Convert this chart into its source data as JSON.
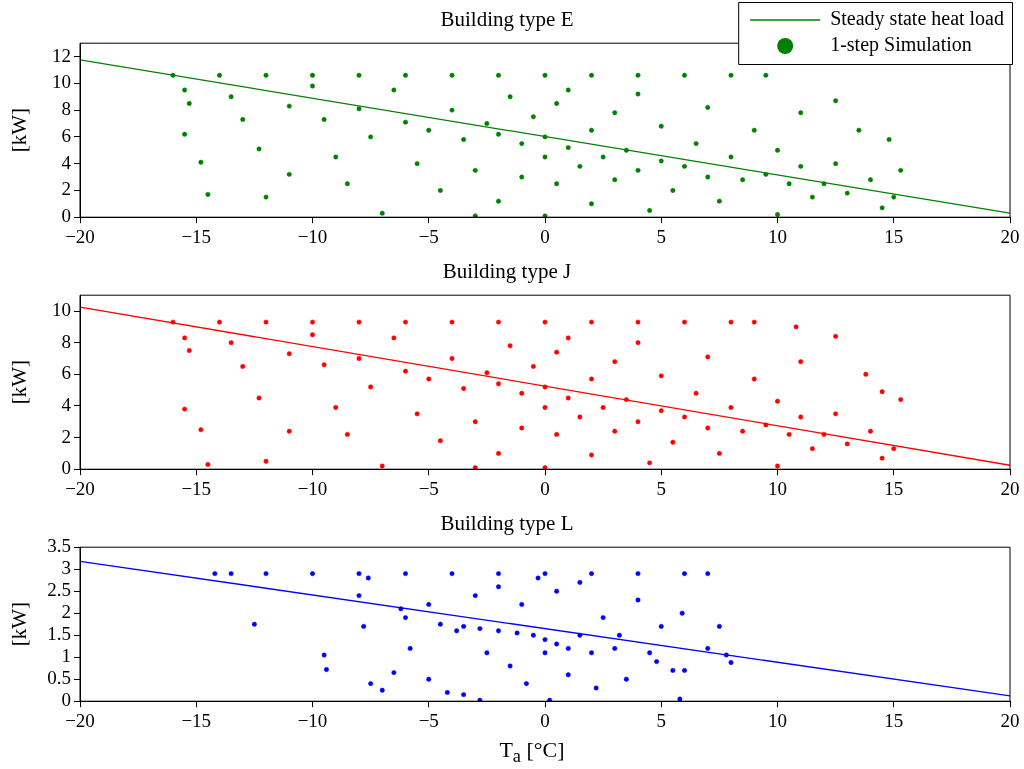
{
  "chart_data": [
    {
      "type": "scatter",
      "title": "Building type E",
      "ylabel": "[kW]",
      "xlim": [
        -20,
        20
      ],
      "xticks": [
        -20,
        -15,
        -10,
        -5,
        0,
        5,
        10,
        15,
        20
      ],
      "ylim": [
        0,
        13
      ],
      "yticks": [
        0,
        2,
        4,
        6,
        8,
        10,
        12
      ],
      "grid": false,
      "legend": "top right",
      "series": [
        {
          "type": "line",
          "name": "Steady state heat load",
          "color": "#008000",
          "x": [
            -20,
            20
          ],
          "values": [
            11.75,
            0.3
          ]
        },
        {
          "type": "scatter",
          "marker": "circle",
          "name": "1-step Simulation",
          "color": "#008000",
          "x": [
            -16,
            -14,
            -12,
            -10,
            -8,
            -6,
            -4,
            -2,
            0,
            2,
            4,
            6,
            8,
            9.5,
            -15.5,
            -15.3,
            -15.5,
            -14.8,
            -14.5,
            -13.5,
            -13,
            -12.3,
            -12,
            -11,
            -11,
            -10,
            -9.5,
            -9,
            -8.5,
            -8,
            -7.5,
            -7,
            -6.5,
            -6,
            -5.5,
            -5,
            -4.5,
            -4,
            -3.5,
            -3,
            -3,
            -2.5,
            -2,
            -2,
            -1.5,
            -1,
            -1,
            -0.5,
            0,
            0,
            0,
            0.5,
            0.5,
            1,
            1,
            1.5,
            2,
            2,
            2.5,
            3,
            3,
            3.5,
            4,
            4,
            4.5,
            5,
            5,
            5.5,
            6,
            6.5,
            7,
            7,
            7.5,
            8,
            8.5,
            9,
            9.5,
            10,
            10,
            10.5,
            11,
            11,
            11.5,
            12,
            12.5,
            12.5,
            13,
            13.5,
            14,
            14.5,
            15,
            15.3,
            14.8
          ],
          "values": [
            10.6,
            10.6,
            10.6,
            10.6,
            10.6,
            10.6,
            10.6,
            10.6,
            10.6,
            10.6,
            10.6,
            10.6,
            10.6,
            10.6,
            9.5,
            8.5,
            6.2,
            4.1,
            1.7,
            9,
            7.3,
            5.1,
            1.5,
            3.2,
            8.3,
            9.8,
            7.3,
            4.5,
            2.5,
            8.1,
            6,
            0.3,
            9.5,
            7.1,
            4,
            6.5,
            2,
            8,
            5.8,
            0.1,
            3.5,
            7,
            6.2,
            1.2,
            9,
            5.5,
            3,
            7.5,
            6,
            4.5,
            0.1,
            8.5,
            2.5,
            5.2,
            9.5,
            3.8,
            6.5,
            1,
            4.5,
            7.8,
            2.8,
            5,
            3.5,
            9.2,
            0.5,
            4.2,
            6.8,
            2,
            3.8,
            5.5,
            3,
            8.2,
            1.2,
            4.5,
            2.8,
            6.5,
            3.2,
            0.2,
            5,
            2.5,
            3.8,
            7.8,
            1.5,
            2.5,
            8.7,
            4,
            1.8,
            6.5,
            2.8,
            0.7,
            1.5,
            3.5,
            5.8
          ]
        }
      ]
    },
    {
      "type": "scatter",
      "title": "Building type J",
      "ylabel": "[kW]",
      "xlim": [
        -20,
        20
      ],
      "xticks": [
        -20,
        -15,
        -10,
        -5,
        0,
        5,
        10,
        15,
        20
      ],
      "ylim": [
        0,
        11
      ],
      "yticks": [
        0,
        2,
        4,
        6,
        8,
        10
      ],
      "grid": false,
      "series": [
        {
          "type": "line",
          "color": "#ff0000",
          "x": [
            -20,
            20
          ],
          "values": [
            10.25,
            0.25
          ]
        },
        {
          "type": "scatter",
          "marker": "circle",
          "color": "#ff0000",
          "x": [
            -16,
            -14,
            -12,
            -10,
            -8,
            -6,
            -4,
            -2,
            0,
            2,
            4,
            6,
            8,
            9,
            -15.5,
            -15.3,
            -15.5,
            -14.8,
            -14.5,
            -13.5,
            -13,
            -12.3,
            -12,
            -11,
            -11,
            -10,
            -9.5,
            -9,
            -8.5,
            -8,
            -7.5,
            -7,
            -6.5,
            -6,
            -5.5,
            -5,
            -4.5,
            -4,
            -3.5,
            -3,
            -3,
            -2.5,
            -2,
            -2,
            -1.5,
            -1,
            -1,
            -0.5,
            0,
            0,
            0,
            0.5,
            0.5,
            1,
            1,
            1.5,
            2,
            2,
            2.5,
            3,
            3,
            3.5,
            4,
            4,
            4.5,
            5,
            5,
            5.5,
            6,
            6.5,
            7,
            7,
            7.5,
            8,
            8.5,
            9,
            9.5,
            10,
            10,
            10.8,
            10.5,
            11,
            11,
            11.5,
            12,
            12.5,
            12.5,
            13,
            13.8,
            14,
            14.5,
            15,
            15.3,
            14.5
          ],
          "values": [
            9.3,
            9.3,
            9.3,
            9.3,
            9.3,
            9.3,
            9.3,
            9.3,
            9.3,
            9.3,
            9.3,
            9.3,
            9.3,
            9.3,
            8.3,
            7.5,
            3.8,
            2.5,
            0.3,
            8,
            6.5,
            4.5,
            0.5,
            2.4,
            7.3,
            8.5,
            6.6,
            3.9,
            2.2,
            7,
            5.2,
            0.2,
            8.3,
            6.2,
            3.5,
            5.7,
            1.8,
            7,
            5.1,
            0.1,
            3,
            6.1,
            5.4,
            1,
            7.8,
            4.8,
            2.6,
            6.5,
            5.2,
            3.9,
            0.1,
            7.4,
            2.2,
            4.5,
            8.3,
            3.3,
            5.7,
            0.9,
            3.9,
            6.8,
            2.4,
            4.4,
            3,
            8,
            0.4,
            3.7,
            5.9,
            1.7,
            3.3,
            4.8,
            2.6,
            7.1,
            1,
            3.9,
            2.4,
            5.7,
            2.8,
            0.2,
            4.3,
            9,
            2.2,
            3.3,
            6.8,
            1.3,
            2.2,
            8.4,
            3.5,
            1.6,
            6,
            2.4,
            0.7,
            1.3,
            4.4,
            4.9
          ]
        }
      ]
    },
    {
      "type": "scatter",
      "title": "Building type L",
      "xlabel": "T$_{a}$ [°C]",
      "ylabel": "[kW]",
      "xlim": [
        -20,
        20
      ],
      "xticks": [
        -20,
        -15,
        -10,
        -5,
        0,
        5,
        10,
        15,
        20
      ],
      "ylim": [
        0,
        3.5
      ],
      "yticks": [
        0,
        0.5,
        1,
        1.5,
        2,
        2.5,
        3,
        3.5
      ],
      "grid": false,
      "series": [
        {
          "type": "line",
          "color": "#0000ff",
          "x": [
            -20,
            20
          ],
          "values": [
            3.18,
            0.12
          ]
        },
        {
          "type": "scatter",
          "marker": "circle",
          "color": "#0000ff",
          "x": [
            -14.2,
            -13.5,
            -12,
            -10,
            -8,
            -6,
            -4,
            -2,
            0,
            2,
            4,
            6,
            7,
            -12.5,
            -9.5,
            -9.4,
            -8,
            -7.8,
            -7.6,
            -7.5,
            -7,
            -6.5,
            -6.2,
            -6,
            -5.8,
            -5,
            -5,
            -4.5,
            -4.2,
            -3.8,
            -3.5,
            -3.5,
            -3,
            -2.8,
            -2.8,
            -2.5,
            -2,
            -2,
            -1.5,
            -1.2,
            -1,
            -0.8,
            -0.5,
            -0.3,
            0,
            0,
            0.2,
            0.5,
            0.5,
            1,
            1,
            1.5,
            1.5,
            2,
            2.2,
            2.5,
            3,
            3.2,
            3.5,
            4,
            4.5,
            4.8,
            5,
            5.5,
            5.8,
            5.9,
            6,
            7,
            7.5,
            7.8,
            8
          ],
          "values": [
            2.9,
            2.9,
            2.9,
            2.9,
            2.9,
            2.9,
            2.9,
            2.9,
            2.9,
            2.9,
            2.9,
            2.9,
            2.9,
            1.75,
            1.05,
            0.72,
            2.4,
            1.7,
            2.8,
            0.4,
            0.25,
            0.65,
            2.1,
            1.9,
            1.2,
            0.5,
            2.2,
            1.75,
            0.2,
            1.6,
            1.7,
            0.15,
            2.4,
            1.65,
            0.02,
            1.1,
            2.6,
            1.6,
            0.8,
            1.55,
            2.2,
            0.4,
            1.5,
            2.8,
            1.4,
            1.1,
            0.02,
            1.3,
            2.5,
            1.2,
            0.6,
            1.5,
            2.7,
            1.1,
            0.3,
            1.9,
            1.2,
            1.5,
            0.5,
            2.3,
            1.1,
            0.9,
            1.7,
            0.7,
            0.05,
            2,
            0.7,
            1.2,
            1.7,
            1.05,
            0.88
          ]
        }
      ]
    }
  ]
}
